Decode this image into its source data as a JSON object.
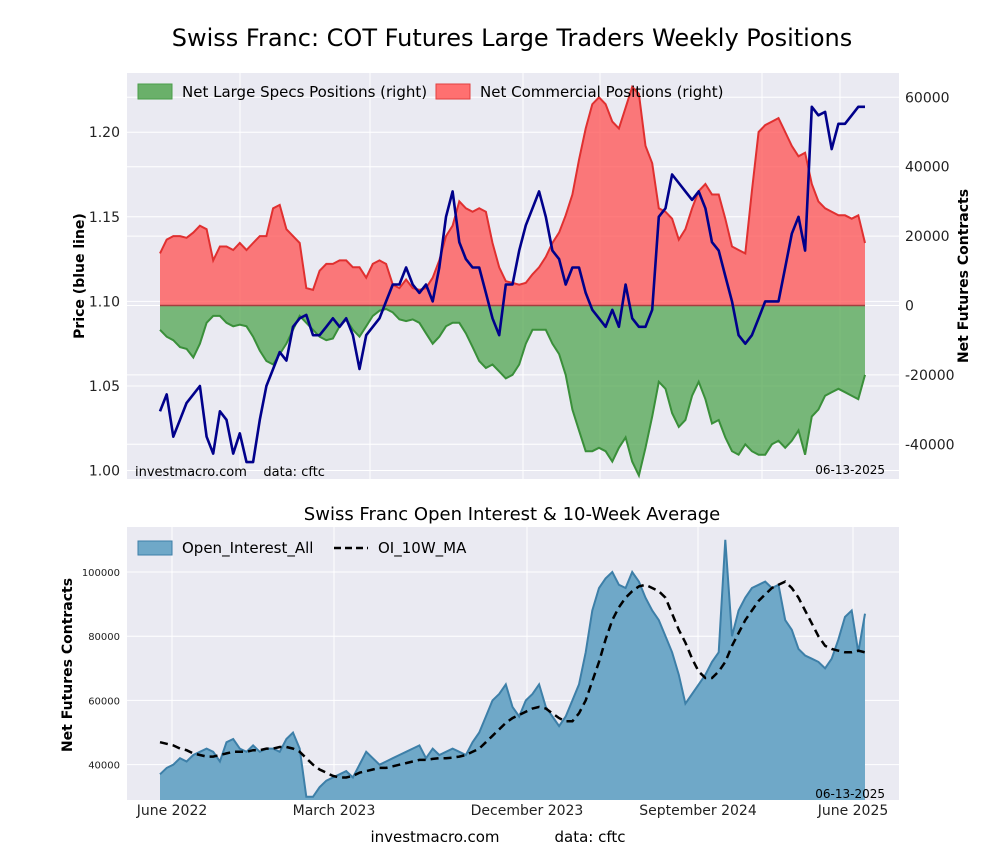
{
  "chart_data": [
    {
      "type": "line",
      "title": "Swiss Franc: COT Futures Large Traders Weekly Positions",
      "ylabel_left": "Price (blue line)",
      "ylabel_right": "Net Futures Contracts",
      "ylim_left": [
        0.995,
        1.235
      ],
      "ylim_right": [
        -50000,
        67000
      ],
      "yticks_left": [
        "1.00",
        "1.05",
        "1.10",
        "1.15",
        "1.20"
      ],
      "yticks_right": [
        "-40000",
        "-20000",
        "0",
        "20000",
        "40000",
        "60000"
      ],
      "grid": true,
      "legend_position": "top",
      "footer_left": "investmacro.com    data: cftc",
      "footer_right": "06-13-2025",
      "colors": {
        "price": "#00008b",
        "specs": "#4a9e4a",
        "commercial": "#ff5a5a",
        "background": "#eaeaf2"
      },
      "series": [
        {
          "name": "Net Large Specs Positions (right)",
          "kind": "area",
          "values": [
            -7000,
            -9000,
            -10000,
            -12000,
            -12500,
            -15000,
            -11000,
            -5000,
            -3000,
            -3000,
            -5000,
            -6000,
            -5500,
            -6000,
            -9000,
            -13000,
            -16000,
            -17000,
            -14000,
            -11000,
            -7000,
            -3000,
            -5000,
            -7000,
            -9000,
            -10000,
            -9500,
            -6000,
            -4000,
            -7000,
            -9000,
            -6000,
            -3000,
            -1500,
            -1000,
            -2000,
            -4000,
            -4500,
            -4000,
            -5000,
            -8000,
            -11000,
            -9000,
            -6000,
            -5000,
            -5000,
            -8000,
            -12000,
            -16000,
            -18000,
            -17000,
            -19000,
            -21000,
            -20000,
            -17000,
            -11000,
            -7000,
            -7000,
            -7000,
            -11000,
            -14000,
            -20000,
            -30000,
            -36000,
            -42000,
            -42000,
            -41000,
            -42000,
            -45000,
            -41000,
            -38000,
            -45000,
            -49000,
            -41000,
            -32000,
            -22000,
            -24000,
            -31000,
            -35000,
            -33000,
            -26000,
            -22000,
            -27000,
            -34000,
            -33000,
            -38000,
            -42000,
            -43000,
            -40000,
            -42000,
            -43000,
            -43000,
            -40000,
            -39000,
            -41000,
            -39000,
            -36000,
            -43000,
            -32000,
            -30000,
            -26000,
            -25000,
            -24000,
            -25000,
            -26000,
            -27000,
            -20000
          ]
        },
        {
          "name": "Net Commercial Positions (right)",
          "kind": "area",
          "values": [
            15000,
            19000,
            20000,
            20000,
            19500,
            21000,
            23000,
            22000,
            13000,
            17000,
            17000,
            16000,
            18000,
            16000,
            18000,
            20000,
            20000,
            28000,
            29000,
            22000,
            20000,
            18000,
            5000,
            4500,
            10000,
            12000,
            12000,
            13000,
            13000,
            11000,
            11000,
            8000,
            12000,
            13000,
            12000,
            6000,
            5000,
            7500,
            5000,
            4500,
            5000,
            8000,
            13000,
            20000,
            23000,
            30000,
            28000,
            27000,
            28000,
            27000,
            18000,
            11000,
            7000,
            6500,
            6000,
            6500,
            9000,
            11000,
            14000,
            18000,
            21000,
            26000,
            32000,
            42000,
            51000,
            58000,
            60000,
            58000,
            53000,
            51000,
            57000,
            63000,
            61000,
            46000,
            41000,
            28000,
            27000,
            25000,
            19000,
            22000,
            28000,
            33000,
            35000,
            32000,
            32000,
            25000,
            17000,
            16000,
            15000,
            33000,
            50000,
            52000,
            53000,
            54000,
            50000,
            46000,
            43000,
            44000,
            35000,
            30000,
            28000,
            27000,
            26000,
            26000,
            25000,
            26000,
            18000
          ]
        },
        {
          "name": "Price",
          "kind": "line",
          "values": [
            1.035,
            1.045,
            1.02,
            1.03,
            1.04,
            1.045,
            1.05,
            1.02,
            1.01,
            1.035,
            1.03,
            1.01,
            1.022,
            1.005,
            1.005,
            1.03,
            1.05,
            1.06,
            1.07,
            1.065,
            1.085,
            1.09,
            1.092,
            1.08,
            1.08,
            1.085,
            1.09,
            1.085,
            1.09,
            1.08,
            1.06,
            1.08,
            1.085,
            1.09,
            1.1,
            1.11,
            1.11,
            1.12,
            1.11,
            1.105,
            1.11,
            1.1,
            1.12,
            1.15,
            1.165,
            1.135,
            1.125,
            1.12,
            1.12,
            1.105,
            1.09,
            1.08,
            1.11,
            1.11,
            1.13,
            1.145,
            1.155,
            1.165,
            1.15,
            1.13,
            1.125,
            1.11,
            1.12,
            1.12,
            1.105,
            1.095,
            1.09,
            1.085,
            1.095,
            1.085,
            1.11,
            1.09,
            1.085,
            1.085,
            1.095,
            1.15,
            1.155,
            1.175,
            1.17,
            1.165,
            1.16,
            1.165,
            1.155,
            1.135,
            1.13,
            1.115,
            1.1,
            1.08,
            1.075,
            1.08,
            1.09,
            1.1,
            1.1,
            1.1,
            1.12,
            1.14,
            1.15,
            1.13,
            1.215,
            1.21,
            1.212,
            1.19,
            1.205,
            1.205,
            1.21,
            1.215,
            1.215
          ]
        }
      ]
    },
    {
      "type": "area",
      "title": "Swiss Franc Open Interest & 10-Week Average",
      "ylabel": "Net Futures Contracts",
      "ylim": [
        29000,
        114000
      ],
      "yticks": [
        "40000",
        "60000",
        "80000",
        "100000"
      ],
      "xticks": [
        "June 2022",
        "March 2023",
        "December 2023",
        "September 2024",
        "June 2025"
      ],
      "grid": true,
      "legend_position": "top-left",
      "footer_right": "06-13-2025",
      "colors": {
        "oi_fill": "#6fa8c8",
        "oi_line": "#3d7fa8",
        "ma": "#000000"
      },
      "series": [
        {
          "name": "Open_Interest_All",
          "values": [
            37000,
            39000,
            40000,
            42000,
            41000,
            43000,
            44000,
            45000,
            44000,
            41000,
            47000,
            48000,
            45000,
            44000,
            46000,
            44000,
            45000,
            45000,
            44000,
            48000,
            50000,
            45000,
            30000,
            30000,
            33000,
            35000,
            36000,
            37000,
            38000,
            36000,
            40000,
            44000,
            42000,
            40000,
            41000,
            42000,
            43000,
            44000,
            45000,
            46000,
            42000,
            45000,
            43000,
            44000,
            45000,
            44000,
            43000,
            47000,
            50000,
            55000,
            60000,
            62000,
            65000,
            58000,
            55000,
            60000,
            62000,
            65000,
            58000,
            55000,
            52000,
            55000,
            60000,
            65000,
            75000,
            88000,
            95000,
            98000,
            100000,
            96000,
            95000,
            100000,
            97000,
            92000,
            88000,
            85000,
            80000,
            75000,
            68000,
            59000,
            62000,
            65000,
            68000,
            72000,
            75000,
            110000,
            80000,
            88000,
            92000,
            95000,
            96000,
            97000,
            95000,
            96000,
            85000,
            82000,
            76000,
            74000,
            73000,
            72000,
            70000,
            73000,
            79000,
            86000,
            88000,
            75000,
            87000
          ]
        },
        {
          "name": "OI_10W_MA",
          "values": [
            47000,
            46500,
            46000,
            45000,
            44500,
            43500,
            43000,
            42500,
            42500,
            43000,
            43500,
            44000,
            44000,
            44000,
            44500,
            44500,
            45000,
            45000,
            45500,
            45500,
            45000,
            44000,
            42000,
            40000,
            38500,
            37500,
            36500,
            36000,
            36000,
            36500,
            37500,
            38000,
            38500,
            39000,
            39000,
            39500,
            40000,
            40500,
            41000,
            41500,
            41500,
            41800,
            42000,
            42000,
            42200,
            42500,
            43000,
            44000,
            45000,
            47000,
            49000,
            51000,
            53000,
            54500,
            55500,
            56500,
            57500,
            58000,
            57500,
            56000,
            54500,
            53500,
            53500,
            56000,
            60000,
            66000,
            72000,
            79000,
            85000,
            89000,
            92000,
            94000,
            95500,
            96000,
            95000,
            94000,
            92000,
            87000,
            82000,
            78000,
            73000,
            69000,
            67000,
            67000,
            69000,
            72000,
            77000,
            81000,
            85000,
            88000,
            91000,
            93000,
            95000,
            96000,
            97000,
            95000,
            92000,
            88000,
            84000,
            80000,
            77000,
            76000,
            75500,
            75000,
            75000,
            75500,
            75000
          ]
        }
      ]
    }
  ],
  "bottom_footer": {
    "left": "investmacro.com",
    "right": "data: cftc"
  }
}
